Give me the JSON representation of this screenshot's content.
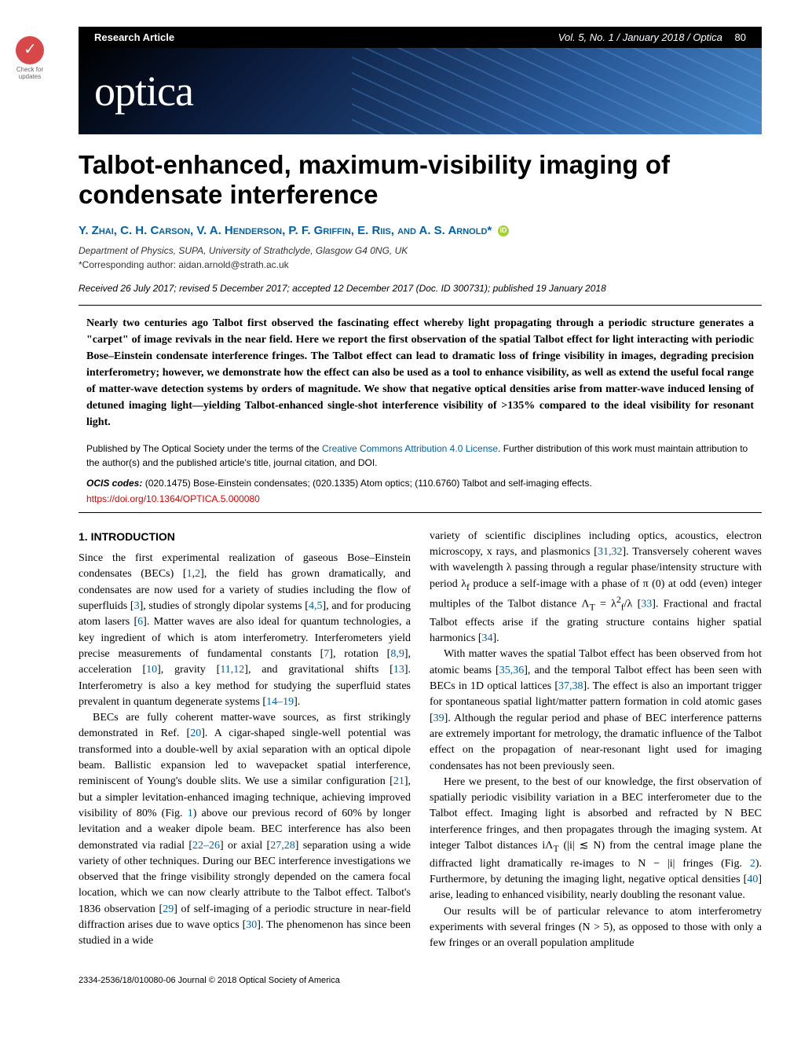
{
  "header": {
    "article_type": "Research Article",
    "volume_info": "Vol. 5, No. 1 / January 2018 /",
    "journal": "Optica",
    "page_number": "80"
  },
  "check_badge": {
    "line1": "Check for",
    "line2": "updates"
  },
  "banner": {
    "logo": "optica"
  },
  "title": "Talbot-enhanced, maximum-visibility imaging of condensate interference",
  "authors": "Y. Zhai, C. H. Carson, V. A. Henderson, P. F. Griffin, E. Riis, and A. S. Arnold*",
  "affiliation": "Department of Physics, SUPA, University of Strathclyde, Glasgow G4 0NG, UK",
  "corresponding": "*Corresponding author: aidan.arnold@strath.ac.uk",
  "received": "Received 26 July 2017; revised 5 December 2017; accepted 12 December 2017 (Doc. ID 300731); published 19 January 2018",
  "abstract": "Nearly two centuries ago Talbot first observed the fascinating effect whereby light propagating through a periodic structure generates a \"carpet\" of image revivals in the near field. Here we report the first observation of the spatial Talbot effect for light interacting with periodic Bose–Einstein condensate interference fringes. The Talbot effect can lead to dramatic loss of fringe visibility in images, degrading precision interferometry; however, we demonstrate how the effect can also be used as a tool to enhance visibility, as well as extend the useful focal range of matter-wave detection systems by orders of magnitude. We show that negative optical densities arise from matter-wave induced lensing of detuned imaging light—yielding Talbot-enhanced single-shot interference visibility of >135% compared to the ideal visibility for resonant light.",
  "license": {
    "text1": "Published by The Optical Society under the terms of the ",
    "link": "Creative Commons Attribution 4.0 License",
    "text2": ". Further distribution of this work must maintain attribution to the author(s) and the published article's title, journal citation, and DOI."
  },
  "ocis": {
    "label": "OCIS codes:",
    "codes": "(020.1475) Bose-Einstein condensates; (020.1335) Atom optics; (110.6760) Talbot and self-imaging effects."
  },
  "doi": "https://doi.org/10.1364/OPTICA.5.000080",
  "section1": {
    "heading": "1. INTRODUCTION",
    "p1a": "Since the first experimental realization of gaseous Bose–Einstein condensates (BECs) [",
    "p1b": "], the field has grown dramatically, and condensates are now used for a variety of studies including the flow of superfluids [",
    "p1c": "], studies of strongly dipolar systems [",
    "p1d": "], and for producing atom lasers [",
    "p1e": "]. Matter waves are also ideal for quantum technologies, a key ingredient of which is atom interferometry. Interferometers yield precise measurements of fundamental constants [",
    "p1f": "], rotation [",
    "p1g": "], acceleration [",
    "p1h": "], gravity [",
    "p1i": "], and gravitational shifts [",
    "p1j": "]. Interferometry is also a key method for studying the superfluid states prevalent in quantum degenerate systems [",
    "p1k": "].",
    "p2a": "BECs are fully coherent matter-wave sources, as first strikingly demonstrated in Ref. [",
    "p2b": "]. A cigar-shaped single-well potential was transformed into a double-well by axial separation with an optical dipole beam. Ballistic expansion led to wavepacket spatial interference, reminiscent of Young's double slits. We use a similar configuration [",
    "p2c": "], but a simpler levitation-enhanced imaging technique, achieving improved visibility of 80% (Fig. ",
    "p2d": ") above our previous record of 60% by longer levitation and a weaker dipole beam. BEC interference has also been demonstrated via radial [",
    "p2e": "] or axial [",
    "p2f": "] separation using a wide variety of other techniques. During our BEC interference investigations we observed that the fringe visibility strongly depended on the camera focal location, which we can now clearly attribute to the Talbot effect. Talbot's 1836 observation [",
    "p2g": "] of self-imaging of a periodic structure in near-field diffraction arises due to wave optics [",
    "p2h": "]. The phenomenon has since been studied in a wide",
    "r1": "1",
    "r2": "2",
    "r3": "3",
    "r45": "4,5",
    "r6": "6",
    "r7": "7",
    "r89": "8,9",
    "r10": "10",
    "r1112": "11,12",
    "r13": "13",
    "r1419": "14–19",
    "r20": "20",
    "r21": "21",
    "fig1": "1",
    "r2226": "22–26",
    "r2728": "27,28",
    "r29": "29",
    "r30": "30"
  },
  "col2": {
    "p1a": "variety of scientific disciplines including optics, acoustics, electron microscopy, x rays, and plasmonics [",
    "p1b": "]. Transversely coherent waves with wavelength λ passing through a regular phase/intensity structure with period λ",
    "p1c": " produce a self-image with a phase of π (0) at odd (even) integer multiples of the Talbot distance Λ",
    "p1d": " = λ",
    "p1e": "/λ [",
    "p1f": "]. Fractional and fractal Talbot effects arise if the grating structure contains higher spatial harmonics [",
    "p1g": "].",
    "p2a": "With matter waves the spatial Talbot effect has been observed from hot atomic beams [",
    "p2b": "], and the temporal Talbot effect has been seen with BECs in 1D optical lattices [",
    "p2c": "]. The effect is also an important trigger for spontaneous spatial light/matter pattern formation in cold atomic gases [",
    "p2d": "]. Although the regular period and phase of BEC interference patterns are extremely important for metrology, the dramatic influence of the Talbot effect on the propagation of near-resonant light used for imaging condensates has not been previously seen.",
    "p3a": "Here we present, to the best of our knowledge, the first observation of spatially periodic visibility variation in a BEC interferometer due to the Talbot effect. Imaging light is absorbed and refracted by N BEC interference fringes, and then propagates through the imaging system. At integer Talbot distances iΛ",
    "p3b": " (|i| ≲ N) from the central image plane the diffracted light dramatically re-images to N − |i| fringes (Fig. ",
    "p3c": "). Furthermore, by detuning the imaging light, negative optical densities [",
    "p3d": "] arise, leading to enhanced visibility, nearly doubling the resonant value.",
    "p4a": "Our results will be of particular relevance to atom interferometry experiments with several fringes (N > 5), as opposed to those with only a few fringes or an overall population amplitude",
    "r3132": "31,32",
    "r33": "33",
    "r34": "34",
    "r3536": "35,36",
    "r3738": "37,38",
    "r39": "39",
    "fig2": "2",
    "r40": "40",
    "sub_f": "f",
    "sub_T": "T",
    "sup_2": "2"
  },
  "footer": "2334-2536/18/010080-06 Journal © 2018 Optical Society of America"
}
